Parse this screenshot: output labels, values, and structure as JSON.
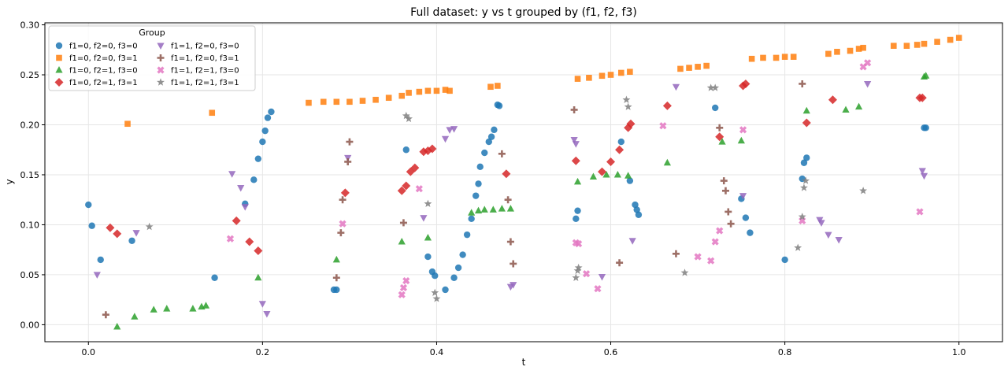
{
  "chart_data": {
    "type": "scatter",
    "title": "Full dataset: y vs t grouped by (f1, f2, f3)",
    "xlabel": "t",
    "ylabel": "y",
    "xlim": [
      -0.05,
      1.05
    ],
    "ylim": [
      -0.017,
      0.302
    ],
    "xticks": [
      0.0,
      0.2,
      0.4,
      0.6,
      0.8,
      1.0
    ],
    "xtick_labels": [
      "0.0",
      "0.2",
      "0.4",
      "0.6",
      "0.8",
      "1.0"
    ],
    "yticks": [
      0.0,
      0.05,
      0.1,
      0.15,
      0.2,
      0.25,
      0.3
    ],
    "ytick_labels": [
      "0.00",
      "0.05",
      "0.10",
      "0.15",
      "0.20",
      "0.25",
      "0.30"
    ],
    "grid": true,
    "legend": {
      "title": "Group",
      "location": "top-left",
      "columns": 2
    },
    "series": [
      {
        "name": "f1=0, f2=0, f3=0",
        "color": "#1f77b4",
        "marker": "circle",
        "points": [
          [
            0.0,
            0.12
          ],
          [
            0.004,
            0.099
          ],
          [
            0.014,
            0.065
          ],
          [
            0.05,
            0.084
          ],
          [
            0.145,
            0.047
          ],
          [
            0.18,
            0.121
          ],
          [
            0.19,
            0.145
          ],
          [
            0.195,
            0.166
          ],
          [
            0.2,
            0.183
          ],
          [
            0.203,
            0.194
          ],
          [
            0.206,
            0.207
          ],
          [
            0.21,
            0.213
          ],
          [
            0.282,
            0.035
          ],
          [
            0.285,
            0.035
          ],
          [
            0.365,
            0.175
          ],
          [
            0.39,
            0.068
          ],
          [
            0.395,
            0.053
          ],
          [
            0.398,
            0.049
          ],
          [
            0.41,
            0.035
          ],
          [
            0.42,
            0.047
          ],
          [
            0.425,
            0.057
          ],
          [
            0.43,
            0.07
          ],
          [
            0.435,
            0.09
          ],
          [
            0.44,
            0.106
          ],
          [
            0.445,
            0.129
          ],
          [
            0.448,
            0.141
          ],
          [
            0.45,
            0.158
          ],
          [
            0.455,
            0.172
          ],
          [
            0.46,
            0.183
          ],
          [
            0.463,
            0.188
          ],
          [
            0.466,
            0.195
          ],
          [
            0.47,
            0.22
          ],
          [
            0.472,
            0.219
          ],
          [
            0.56,
            0.106
          ],
          [
            0.562,
            0.114
          ],
          [
            0.612,
            0.183
          ],
          [
            0.622,
            0.144
          ],
          [
            0.628,
            0.12
          ],
          [
            0.63,
            0.115
          ],
          [
            0.632,
            0.11
          ],
          [
            0.72,
            0.217
          ],
          [
            0.75,
            0.126
          ],
          [
            0.755,
            0.107
          ],
          [
            0.76,
            0.092
          ],
          [
            0.8,
            0.065
          ],
          [
            0.82,
            0.146
          ],
          [
            0.822,
            0.162
          ],
          [
            0.825,
            0.167
          ],
          [
            0.96,
            0.197
          ],
          [
            0.962,
            0.197
          ]
        ]
      },
      {
        "name": "f1=0, f2=0, f3=1",
        "color": "#ff7f0e",
        "marker": "square",
        "points": [
          [
            0.045,
            0.201
          ],
          [
            0.142,
            0.212
          ],
          [
            0.253,
            0.222
          ],
          [
            0.27,
            0.223
          ],
          [
            0.285,
            0.223
          ],
          [
            0.3,
            0.223
          ],
          [
            0.315,
            0.224
          ],
          [
            0.33,
            0.225
          ],
          [
            0.345,
            0.227
          ],
          [
            0.36,
            0.229
          ],
          [
            0.368,
            0.232
          ],
          [
            0.38,
            0.233
          ],
          [
            0.39,
            0.234
          ],
          [
            0.4,
            0.234
          ],
          [
            0.41,
            0.235
          ],
          [
            0.415,
            0.234
          ],
          [
            0.462,
            0.238
          ],
          [
            0.47,
            0.239
          ],
          [
            0.562,
            0.246
          ],
          [
            0.575,
            0.247
          ],
          [
            0.59,
            0.249
          ],
          [
            0.6,
            0.25
          ],
          [
            0.612,
            0.252
          ],
          [
            0.622,
            0.253
          ],
          [
            0.68,
            0.256
          ],
          [
            0.69,
            0.257
          ],
          [
            0.7,
            0.258
          ],
          [
            0.71,
            0.259
          ],
          [
            0.762,
            0.266
          ],
          [
            0.775,
            0.267
          ],
          [
            0.79,
            0.267
          ],
          [
            0.8,
            0.268
          ],
          [
            0.81,
            0.268
          ],
          [
            0.85,
            0.271
          ],
          [
            0.86,
            0.273
          ],
          [
            0.875,
            0.274
          ],
          [
            0.885,
            0.276
          ],
          [
            0.89,
            0.277
          ],
          [
            0.925,
            0.279
          ],
          [
            0.94,
            0.279
          ],
          [
            0.952,
            0.28
          ],
          [
            0.96,
            0.281
          ],
          [
            0.975,
            0.283
          ],
          [
            0.99,
            0.285
          ],
          [
            1.0,
            0.287
          ]
        ]
      },
      {
        "name": "f1=0, f2=1, f3=0",
        "color": "#2ca02c",
        "marker": "triangle-up",
        "points": [
          [
            0.033,
            -0.002
          ],
          [
            0.053,
            0.008
          ],
          [
            0.075,
            0.015
          ],
          [
            0.09,
            0.016
          ],
          [
            0.12,
            0.016
          ],
          [
            0.13,
            0.018
          ],
          [
            0.135,
            0.019
          ],
          [
            0.195,
            0.047
          ],
          [
            0.285,
            0.065
          ],
          [
            0.36,
            0.083
          ],
          [
            0.39,
            0.087
          ],
          [
            0.44,
            0.112
          ],
          [
            0.448,
            0.114
          ],
          [
            0.455,
            0.115
          ],
          [
            0.465,
            0.115
          ],
          [
            0.475,
            0.116
          ],
          [
            0.485,
            0.116
          ],
          [
            0.562,
            0.143
          ],
          [
            0.58,
            0.148
          ],
          [
            0.595,
            0.15
          ],
          [
            0.608,
            0.15
          ],
          [
            0.62,
            0.149
          ],
          [
            0.665,
            0.162
          ],
          [
            0.728,
            0.183
          ],
          [
            0.75,
            0.184
          ],
          [
            0.825,
            0.214
          ],
          [
            0.87,
            0.215
          ],
          [
            0.885,
            0.218
          ],
          [
            0.96,
            0.248
          ],
          [
            0.962,
            0.249
          ]
        ]
      },
      {
        "name": "f1=0, f2=1, f3=1",
        "color": "#d62728",
        "marker": "diamond",
        "points": [
          [
            0.025,
            0.097
          ],
          [
            0.033,
            0.091
          ],
          [
            0.17,
            0.104
          ],
          [
            0.185,
            0.083
          ],
          [
            0.195,
            0.074
          ],
          [
            0.295,
            0.132
          ],
          [
            0.36,
            0.134
          ],
          [
            0.365,
            0.139
          ],
          [
            0.37,
            0.153
          ],
          [
            0.375,
            0.157
          ],
          [
            0.385,
            0.173
          ],
          [
            0.39,
            0.174
          ],
          [
            0.395,
            0.176
          ],
          [
            0.48,
            0.151
          ],
          [
            0.56,
            0.164
          ],
          [
            0.59,
            0.153
          ],
          [
            0.6,
            0.163
          ],
          [
            0.61,
            0.175
          ],
          [
            0.62,
            0.197
          ],
          [
            0.623,
            0.201
          ],
          [
            0.665,
            0.219
          ],
          [
            0.725,
            0.188
          ],
          [
            0.752,
            0.239
          ],
          [
            0.755,
            0.241
          ],
          [
            0.825,
            0.202
          ],
          [
            0.855,
            0.225
          ],
          [
            0.955,
            0.227
          ],
          [
            0.958,
            0.227
          ]
        ]
      },
      {
        "name": "f1=1, f2=0, f3=0",
        "color": "#9467bd",
        "marker": "triangle-down",
        "points": [
          [
            0.01,
            0.05
          ],
          [
            0.055,
            0.092
          ],
          [
            0.165,
            0.151
          ],
          [
            0.175,
            0.137
          ],
          [
            0.18,
            0.118
          ],
          [
            0.2,
            0.021
          ],
          [
            0.205,
            0.011
          ],
          [
            0.298,
            0.167
          ],
          [
            0.385,
            0.107
          ],
          [
            0.41,
            0.186
          ],
          [
            0.415,
            0.195
          ],
          [
            0.42,
            0.196
          ],
          [
            0.485,
            0.038
          ],
          [
            0.488,
            0.04
          ],
          [
            0.558,
            0.185
          ],
          [
            0.56,
            0.181
          ],
          [
            0.59,
            0.048
          ],
          [
            0.625,
            0.084
          ],
          [
            0.675,
            0.238
          ],
          [
            0.752,
            0.129
          ],
          [
            0.84,
            0.105
          ],
          [
            0.842,
            0.102
          ],
          [
            0.85,
            0.09
          ],
          [
            0.862,
            0.085
          ],
          [
            0.895,
            0.241
          ],
          [
            0.958,
            0.154
          ],
          [
            0.96,
            0.149
          ]
        ]
      },
      {
        "name": "f1=1, f2=0, f3=1",
        "color": "#8c564b",
        "marker": "plus",
        "points": [
          [
            0.02,
            0.01
          ],
          [
            0.285,
            0.047
          ],
          [
            0.29,
            0.092
          ],
          [
            0.292,
            0.125
          ],
          [
            0.298,
            0.163
          ],
          [
            0.3,
            0.183
          ],
          [
            0.362,
            0.102
          ],
          [
            0.475,
            0.171
          ],
          [
            0.482,
            0.125
          ],
          [
            0.485,
            0.083
          ],
          [
            0.488,
            0.061
          ],
          [
            0.558,
            0.215
          ],
          [
            0.61,
            0.062
          ],
          [
            0.675,
            0.071
          ],
          [
            0.725,
            0.197
          ],
          [
            0.73,
            0.144
          ],
          [
            0.732,
            0.134
          ],
          [
            0.735,
            0.113
          ],
          [
            0.738,
            0.101
          ],
          [
            0.82,
            0.241
          ]
        ]
      },
      {
        "name": "f1=1, f2=1, f3=0",
        "color": "#e377c2",
        "marker": "x",
        "points": [
          [
            0.163,
            0.086
          ],
          [
            0.292,
            0.101
          ],
          [
            0.36,
            0.03
          ],
          [
            0.362,
            0.037
          ],
          [
            0.365,
            0.044
          ],
          [
            0.38,
            0.136
          ],
          [
            0.56,
            0.082
          ],
          [
            0.563,
            0.081
          ],
          [
            0.572,
            0.051
          ],
          [
            0.585,
            0.036
          ],
          [
            0.66,
            0.199
          ],
          [
            0.7,
            0.068
          ],
          [
            0.715,
            0.064
          ],
          [
            0.72,
            0.083
          ],
          [
            0.725,
            0.094
          ],
          [
            0.752,
            0.195
          ],
          [
            0.82,
            0.104
          ],
          [
            0.89,
            0.258
          ],
          [
            0.895,
            0.262
          ],
          [
            0.955,
            0.113
          ]
        ]
      },
      {
        "name": "f1=1, f2=1, f3=1",
        "color": "#7f7f7f",
        "marker": "star",
        "points": [
          [
            0.07,
            0.098
          ],
          [
            0.365,
            0.209
          ],
          [
            0.368,
            0.206
          ],
          [
            0.39,
            0.121
          ],
          [
            0.398,
            0.032
          ],
          [
            0.4,
            0.026
          ],
          [
            0.56,
            0.047
          ],
          [
            0.562,
            0.054
          ],
          [
            0.563,
            0.057
          ],
          [
            0.618,
            0.225
          ],
          [
            0.62,
            0.218
          ],
          [
            0.685,
            0.052
          ],
          [
            0.715,
            0.237
          ],
          [
            0.72,
            0.237
          ],
          [
            0.815,
            0.077
          ],
          [
            0.82,
            0.108
          ],
          [
            0.822,
            0.137
          ],
          [
            0.824,
            0.144
          ],
          [
            0.89,
            0.134
          ]
        ]
      }
    ]
  }
}
